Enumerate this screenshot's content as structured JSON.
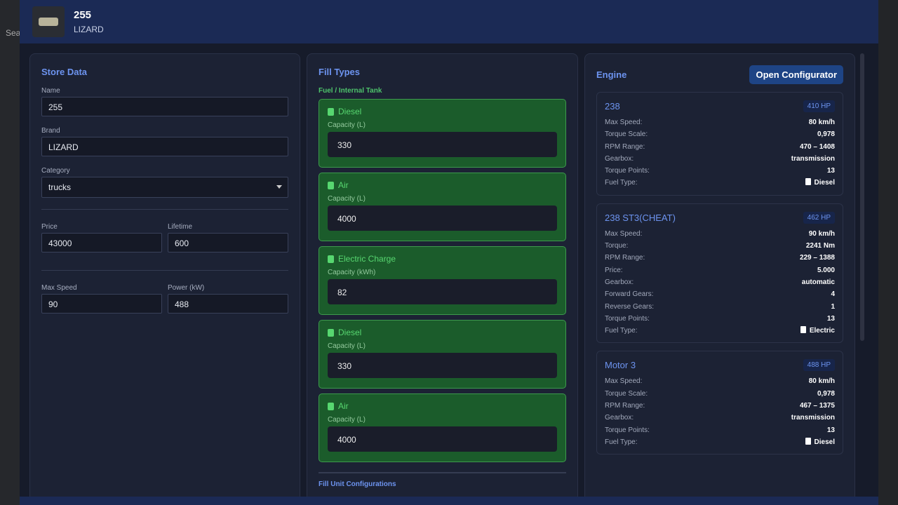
{
  "background": {
    "search_label": "Sea"
  },
  "header": {
    "title": "255",
    "subtitle": "LIZARD"
  },
  "store": {
    "title": "Store Data",
    "name_label": "Name",
    "name": "255",
    "brand_label": "Brand",
    "brand": "LIZARD",
    "category_label": "Category",
    "category": "trucks",
    "price_label": "Price",
    "price": "43000",
    "lifetime_label": "Lifetime",
    "lifetime": "600",
    "maxspeed_label": "Max Speed",
    "maxspeed": "90",
    "power_label": "Power (kW)",
    "power": "488"
  },
  "fill": {
    "title": "Fill Types",
    "subtitle": "Fuel / Internal Tank",
    "items": [
      {
        "name": "Diesel",
        "icon": "fuel-pump-icon",
        "label": "Capacity (L)",
        "value": "330"
      },
      {
        "name": "Air",
        "icon": "plug-icon",
        "label": "Capacity (L)",
        "value": "4000"
      },
      {
        "name": "Electric Charge",
        "icon": "battery-icon",
        "label": "Capacity (kWh)",
        "value": "82"
      },
      {
        "name": "Diesel",
        "icon": "fuel-pump-icon",
        "label": "Capacity (L)",
        "value": "330"
      },
      {
        "name": "Air",
        "icon": "plug-icon",
        "label": "Capacity (L)",
        "value": "4000"
      }
    ],
    "config_title": "Fill Unit Configurations"
  },
  "engine": {
    "title": "Engine",
    "button": "Open Configurator",
    "cards": [
      {
        "name": "238",
        "hp": "410 HP",
        "rows": [
          [
            "Max Speed:",
            "80 km/h"
          ],
          [
            "Torque Scale:",
            "0,978"
          ],
          [
            "RPM Range:",
            "470 – 1408"
          ],
          [
            "Gearbox:",
            "transmission"
          ],
          [
            "Torque Points:",
            "13"
          ],
          [
            "Fuel Type:",
            "Diesel"
          ]
        ]
      },
      {
        "name": "238 ST3(CHEAT)",
        "hp": "462 HP",
        "rows": [
          [
            "Max Speed:",
            "90 km/h"
          ],
          [
            "Torque:",
            "2241 Nm"
          ],
          [
            "RPM Range:",
            "229 – 1388"
          ],
          [
            "Price:",
            "5.000"
          ],
          [
            "Gearbox:",
            "automatic"
          ],
          [
            "Forward Gears:",
            "4"
          ],
          [
            "Reverse Gears:",
            "1"
          ],
          [
            "Torque Points:",
            "13"
          ],
          [
            "Fuel Type:",
            "Electric"
          ]
        ]
      },
      {
        "name": "Motor 3",
        "hp": "488 HP",
        "rows": [
          [
            "Max Speed:",
            "80 km/h"
          ],
          [
            "Torque Scale:",
            "0,978"
          ],
          [
            "RPM Range:",
            "467 – 1375"
          ],
          [
            "Gearbox:",
            "transmission"
          ],
          [
            "Torque Points:",
            "13"
          ],
          [
            "Fuel Type:",
            "Diesel"
          ]
        ]
      }
    ]
  }
}
